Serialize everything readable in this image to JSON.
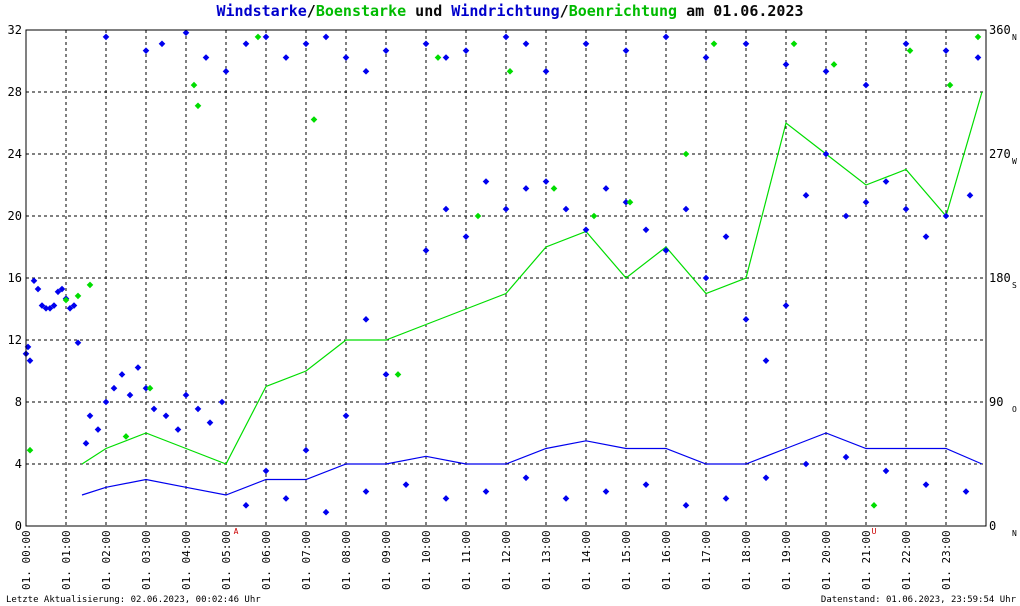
{
  "title": {
    "part1": "Windstarke",
    "sep1": "/",
    "part2": "Boenstarke",
    "part3": " und ",
    "part4": "Windrichtung",
    "sep2": "/",
    "part5": "Boenrichtung",
    "part6": " am 01.06.2023"
  },
  "footer": {
    "left": "Letzte Aktualisierung: 02.06.2023, 00:02:46 Uhr",
    "right": "Datenstand: 01.06.2023, 23:59:54 Uhr"
  },
  "colors": {
    "wind": "#0000ee",
    "gust": "#00dd00",
    "grid": "#000000",
    "marker": "#cc0000"
  },
  "chart_data": {
    "type": "line",
    "x_range_hours": [
      0,
      24
    ],
    "y_left": {
      "min": 0,
      "max": 32,
      "ticks": [
        "0",
        "4",
        "8",
        "12",
        "16",
        "20",
        "24",
        "28",
        "32"
      ]
    },
    "y_right": {
      "min": 0,
      "max": 360,
      "ticks": [
        {
          "deg": 0,
          "label": "0",
          "dir": "N"
        },
        {
          "deg": 90,
          "label": "90",
          "dir": "O"
        },
        {
          "deg": 180,
          "label": "180",
          "dir": "S"
        },
        {
          "deg": 270,
          "label": "270",
          "dir": "W"
        },
        {
          "deg": 360,
          "label": "360",
          "dir": "N"
        }
      ]
    },
    "x_ticks": [
      "01. 00:00",
      "01. 01:00",
      "01. 02:00",
      "01. 03:00",
      "01. 04:00",
      "01. 05:00",
      "01. 06:00",
      "01. 07:00",
      "01. 08:00",
      "01. 09:00",
      "01. 10:00",
      "01. 11:00",
      "01. 12:00",
      "01. 13:00",
      "01. 14:00",
      "01. 15:00",
      "01. 16:00",
      "01. 17:00",
      "01. 18:00",
      "01. 19:00",
      "01. 20:00",
      "01. 21:00",
      "01. 22:00",
      "01. 23:00"
    ],
    "markers": [
      {
        "hour": 5.25,
        "label": "A"
      },
      {
        "hour": 21.2,
        "label": "U"
      }
    ],
    "series": [
      {
        "name": "Windstarke",
        "hours": [
          1.4,
          2,
          3,
          4,
          5,
          6,
          7,
          8,
          9,
          10,
          11,
          12,
          13,
          14,
          15,
          16,
          17,
          18,
          19,
          20,
          21,
          22,
          23,
          23.9
        ],
        "values": [
          2,
          2.5,
          3,
          2.5,
          2,
          3,
          3,
          4,
          4,
          4.5,
          4,
          4,
          5,
          5.5,
          5,
          5,
          4,
          4,
          5,
          6,
          5,
          5,
          5,
          4
        ]
      },
      {
        "name": "Boenstarke",
        "hours": [
          1.4,
          2,
          3,
          4,
          5,
          6,
          7,
          8,
          9,
          10,
          11,
          12,
          13,
          14,
          15,
          16,
          17,
          18,
          19,
          20,
          21,
          22,
          23,
          23.9
        ],
        "values": [
          4,
          5,
          6,
          5,
          4,
          9,
          10,
          12,
          12,
          13,
          14,
          15,
          18,
          19,
          16,
          18,
          15,
          16,
          26,
          24,
          22,
          23,
          20,
          28
        ]
      },
      {
        "name": "Windrichtung",
        "points": [
          [
            0.0,
            125
          ],
          [
            0.05,
            130
          ],
          [
            0.1,
            120
          ],
          [
            0.2,
            178
          ],
          [
            0.3,
            172
          ],
          [
            0.4,
            160
          ],
          [
            0.5,
            158
          ],
          [
            0.6,
            158
          ],
          [
            0.7,
            160
          ],
          [
            0.8,
            170
          ],
          [
            0.9,
            172
          ],
          [
            1.0,
            165
          ],
          [
            1.1,
            158
          ],
          [
            1.2,
            160
          ],
          [
            1.3,
            133
          ],
          [
            1.5,
            60
          ],
          [
            1.6,
            80
          ],
          [
            1.8,
            70
          ],
          [
            2.0,
            90
          ],
          [
            2.2,
            100
          ],
          [
            2.4,
            110
          ],
          [
            2.6,
            95
          ],
          [
            2.8,
            115
          ],
          [
            3.0,
            100
          ],
          [
            3.2,
            85
          ],
          [
            3.5,
            80
          ],
          [
            3.8,
            70
          ],
          [
            4.0,
            95
          ],
          [
            4.3,
            85
          ],
          [
            4.6,
            75
          ],
          [
            4.9,
            90
          ],
          [
            2.0,
            355
          ],
          [
            3.0,
            345
          ],
          [
            3.4,
            350
          ],
          [
            4.0,
            358
          ],
          [
            4.5,
            340
          ],
          [
            5.0,
            330
          ],
          [
            5.5,
            350
          ],
          [
            6.0,
            355
          ],
          [
            6.5,
            340
          ],
          [
            7.0,
            350
          ],
          [
            7.5,
            355
          ],
          [
            8.0,
            340
          ],
          [
            8.5,
            330
          ],
          [
            9.0,
            345
          ],
          [
            10.0,
            350
          ],
          [
            10.5,
            340
          ],
          [
            11.0,
            345
          ],
          [
            12.0,
            355
          ],
          [
            12.5,
            350
          ],
          [
            13.0,
            330
          ],
          [
            14.0,
            350
          ],
          [
            15.0,
            345
          ],
          [
            16.0,
            355
          ],
          [
            17.0,
            340
          ],
          [
            18.0,
            350
          ],
          [
            19.0,
            335
          ],
          [
            20.0,
            330
          ],
          [
            21.0,
            320
          ],
          [
            22.0,
            350
          ],
          [
            23.0,
            345
          ],
          [
            23.8,
            340
          ],
          [
            6.0,
            40
          ],
          [
            7.0,
            55
          ],
          [
            8.0,
            80
          ],
          [
            8.5,
            150
          ],
          [
            9.0,
            110
          ],
          [
            10.0,
            200
          ],
          [
            10.5,
            230
          ],
          [
            11.0,
            210
          ],
          [
            11.5,
            250
          ],
          [
            12.0,
            230
          ],
          [
            12.5,
            245
          ],
          [
            13.0,
            250
          ],
          [
            13.5,
            230
          ],
          [
            14.0,
            215
          ],
          [
            14.5,
            245
          ],
          [
            15.0,
            235
          ],
          [
            15.5,
            215
          ],
          [
            16.0,
            200
          ],
          [
            16.5,
            230
          ],
          [
            17.0,
            180
          ],
          [
            17.5,
            210
          ],
          [
            18.0,
            150
          ],
          [
            18.5,
            120
          ],
          [
            19.0,
            160
          ],
          [
            19.5,
            240
          ],
          [
            20.0,
            270
          ],
          [
            20.5,
            225
          ],
          [
            21.0,
            235
          ],
          [
            21.5,
            250
          ],
          [
            22.0,
            230
          ],
          [
            22.5,
            210
          ],
          [
            23.0,
            225
          ],
          [
            23.6,
            240
          ],
          [
            5.5,
            15
          ],
          [
            6.5,
            20
          ],
          [
            7.5,
            10
          ],
          [
            8.5,
            25
          ],
          [
            9.5,
            30
          ],
          [
            10.5,
            20
          ],
          [
            11.5,
            25
          ],
          [
            12.5,
            35
          ],
          [
            13.5,
            20
          ],
          [
            14.5,
            25
          ],
          [
            15.5,
            30
          ],
          [
            16.5,
            15
          ],
          [
            17.5,
            20
          ],
          [
            18.5,
            35
          ],
          [
            19.5,
            45
          ],
          [
            20.5,
            50
          ],
          [
            21.5,
            40
          ],
          [
            22.5,
            30
          ],
          [
            23.5,
            25
          ]
        ]
      },
      {
        "name": "Boenrichtung",
        "points": [
          [
            0.1,
            55
          ],
          [
            1.0,
            164
          ],
          [
            1.3,
            167
          ],
          [
            1.6,
            175
          ],
          [
            2.5,
            65
          ],
          [
            3.1,
            100
          ],
          [
            4.2,
            320
          ],
          [
            4.3,
            305
          ],
          [
            5.8,
            355
          ],
          [
            7.2,
            295
          ],
          [
            9.3,
            110
          ],
          [
            10.3,
            340
          ],
          [
            11.3,
            225
          ],
          [
            12.1,
            330
          ],
          [
            13.2,
            245
          ],
          [
            14.2,
            225
          ],
          [
            15.1,
            235
          ],
          [
            16.5,
            270
          ],
          [
            17.2,
            350
          ],
          [
            19.2,
            350
          ],
          [
            20.2,
            335
          ],
          [
            21.2,
            15
          ],
          [
            22.1,
            345
          ],
          [
            23.1,
            320
          ],
          [
            23.8,
            355
          ]
        ]
      }
    ]
  }
}
